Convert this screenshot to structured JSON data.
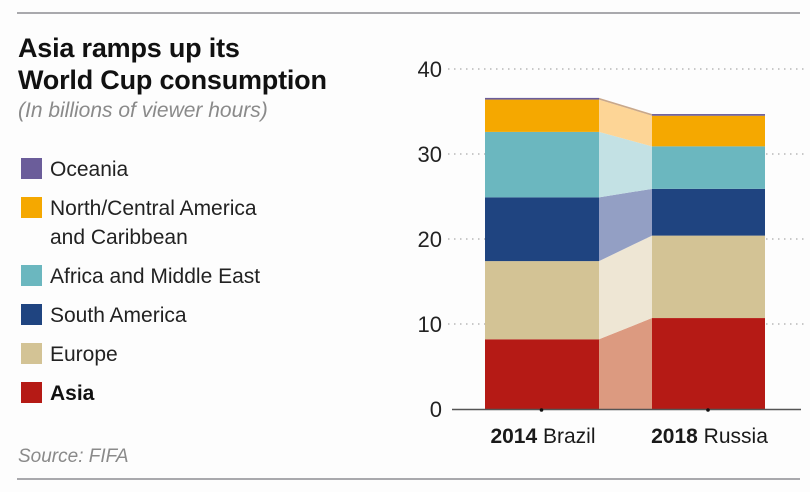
{
  "title_lines": [
    "Asia ramps up its",
    "World Cup consumption"
  ],
  "subtitle": "(In billions of viewer hours)",
  "source": "Source: FIFA",
  "legend": [
    {
      "label": "Oceania",
      "color": "#6b5d9a",
      "bold": false
    },
    {
      "label": "North/Central America\nand Caribbean",
      "label_lines": [
        "North/Central America",
        "and Caribbean"
      ],
      "color": "#f5a800",
      "bold": false
    },
    {
      "label": "Africa and Middle East",
      "color": "#6bb7bf",
      "bold": false
    },
    {
      "label": "South America",
      "color": "#1f4480",
      "bold": false
    },
    {
      "label": "Europe",
      "color": "#d3c395",
      "bold": false
    },
    {
      "label": "Asia",
      "color": "#b51a15",
      "bold": true
    }
  ],
  "chart_data": {
    "type": "bar",
    "stacked": true,
    "title": "Asia ramps up its World Cup consumption",
    "subtitle": "(In billions of viewer hours)",
    "xlabel": "",
    "ylabel": "",
    "ylim": [
      0,
      40
    ],
    "yticks": [
      0,
      10,
      20,
      30,
      40
    ],
    "grid": true,
    "legend_position": "left",
    "categories": [
      {
        "year": "2014",
        "host": "Brazil"
      },
      {
        "year": "2018",
        "host": "Russia"
      }
    ],
    "series": [
      {
        "name": "Asia",
        "color": "#b51a15",
        "connector_color": "#dc9a80",
        "values": [
          8.2,
          10.7
        ]
      },
      {
        "name": "Europe",
        "color": "#d3c395",
        "connector_color": "#eee6d4",
        "values": [
          9.2,
          9.7
        ]
      },
      {
        "name": "South America",
        "color": "#1f4480",
        "connector_color": "#939fc4",
        "values": [
          7.5,
          5.5
        ]
      },
      {
        "name": "Africa and Middle East",
        "color": "#6bb7bf",
        "connector_color": "#c3e1e4",
        "values": [
          7.7,
          5.0
        ]
      },
      {
        "name": "North/Central America and Caribbean",
        "color": "#f5a800",
        "connector_color": "#fdd596",
        "values": [
          3.8,
          3.6
        ]
      },
      {
        "name": "Oceania",
        "color": "#6b5d9a",
        "connector_color": "#c9a88a",
        "values": [
          0.2,
          0.2
        ]
      }
    ],
    "totals": [
      36.6,
      34.7
    ],
    "source": "Source: FIFA"
  }
}
